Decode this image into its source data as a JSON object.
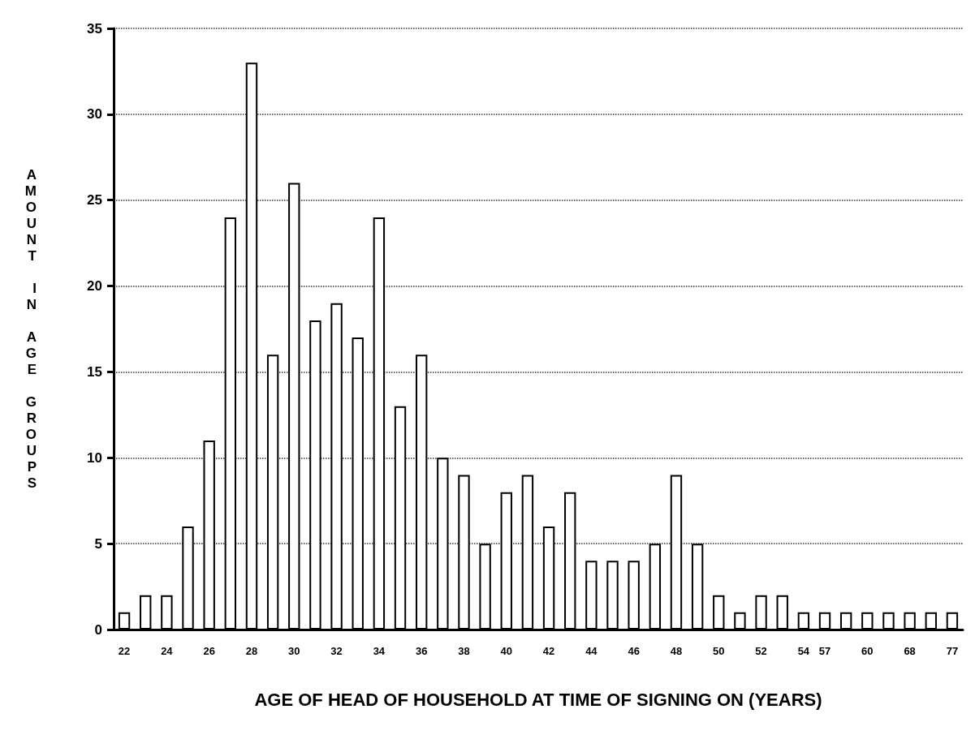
{
  "chart_data": {
    "type": "bar",
    "xlabel": "AGE OF HEAD OF HOUSEHOLD AT TIME OF SIGNING ON (YEARS)",
    "ylabel": "AMOUNT IN AGE GROUPS",
    "categories": [
      "22",
      null,
      "24",
      null,
      "26",
      null,
      "28",
      null,
      "30",
      null,
      "32",
      null,
      "34",
      null,
      "36",
      null,
      "38",
      null,
      "40",
      null,
      "42",
      null,
      "44",
      null,
      "46",
      null,
      "48",
      null,
      "50",
      null,
      "52",
      null,
      "54",
      "57",
      null,
      "60",
      null,
      "68",
      null,
      "77"
    ],
    "values": [
      1,
      2,
      2,
      6,
      11,
      24,
      33,
      16,
      26,
      18,
      19,
      17,
      24,
      13,
      16,
      10,
      9,
      5,
      8,
      9,
      6,
      8,
      4,
      4,
      4,
      5,
      9,
      5,
      2,
      1,
      2,
      2,
      1,
      1,
      1,
      1,
      1,
      1,
      1,
      1
    ],
    "color": "#ffffff",
    "ylim": [
      0,
      35
    ],
    "yticks": [
      0,
      5,
      10,
      15,
      20,
      25,
      30,
      35
    ],
    "grid": "y"
  }
}
